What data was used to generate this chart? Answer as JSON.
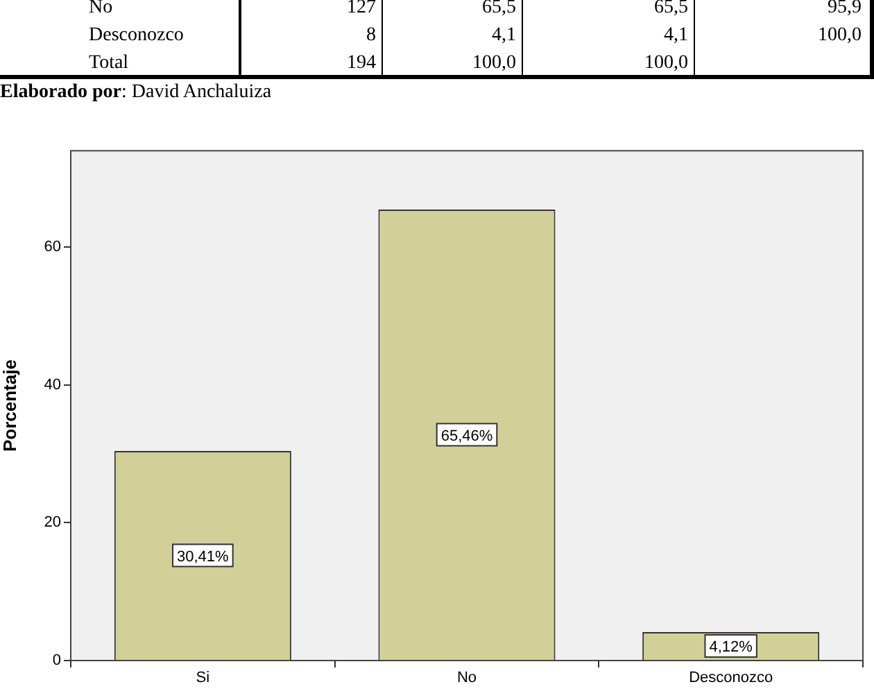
{
  "chart_data": {
    "type": "bar",
    "ylabel": "Porcentaje",
    "categories": [
      "Si",
      "No",
      "Desconozco"
    ],
    "values": [
      30.41,
      65.46,
      4.12
    ],
    "value_labels": [
      "30,41%",
      "65,46%",
      "4,12%"
    ],
    "color": "#d3cf98",
    "ylim": [
      0,
      74
    ],
    "yticks": [
      0,
      20,
      40,
      60
    ],
    "annotations": [
      "No 127 65,5 65,5 95,9",
      "Desconozco 8 4,1 4,1 100,0",
      "Total 194 100,0 100,0",
      "Elaborado por: David Anchaluiza"
    ]
  }
}
